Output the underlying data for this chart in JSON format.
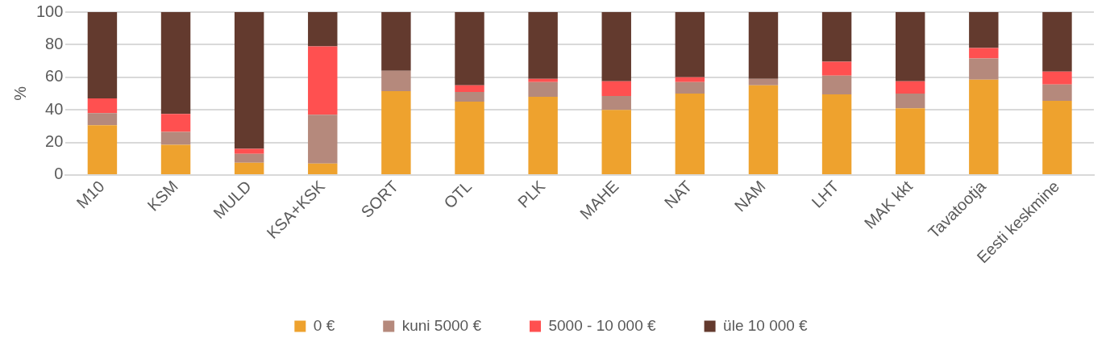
{
  "chart_data": {
    "type": "bar",
    "stacked": true,
    "ylabel": "%",
    "ylim": [
      0,
      100
    ],
    "yticks": [
      0,
      20,
      40,
      60,
      80,
      100
    ],
    "grid": "y",
    "legend": "bottom",
    "categories": [
      "M10",
      "KSM",
      "MULD",
      "KSA+KSK",
      "SORT",
      "OTL",
      "PLK",
      "MAHE",
      "NAT",
      "NAM",
      "LHT",
      "MAK kkt",
      "Tavatootja",
      "Eesti keskmine"
    ],
    "series": [
      {
        "name": "0 €",
        "color": "#eea22e",
        "values": [
          30.5,
          18.5,
          7.5,
          7,
          51.5,
          45,
          48,
          40,
          50,
          55,
          49.5,
          41,
          58.5,
          45.5
        ]
      },
      {
        "name": "kuni 5000 €",
        "color": "#b5897c",
        "values": [
          7.5,
          8,
          5.5,
          30,
          12.5,
          6,
          9,
          8.5,
          7,
          4,
          11.5,
          9,
          13,
          10
        ]
      },
      {
        "name": "5000 - 10 000 €",
        "color": "#ff5050",
        "values": [
          9,
          11,
          3,
          42,
          0,
          4,
          2,
          9,
          3,
          0,
          8.5,
          7.5,
          6.5,
          8
        ]
      },
      {
        "name": "üle 10 000 €",
        "color": "#633a2e",
        "values": [
          53,
          62.5,
          84,
          21,
          36,
          45,
          41,
          42.5,
          40,
          41,
          30.5,
          42.5,
          22,
          36.5
        ]
      }
    ]
  }
}
